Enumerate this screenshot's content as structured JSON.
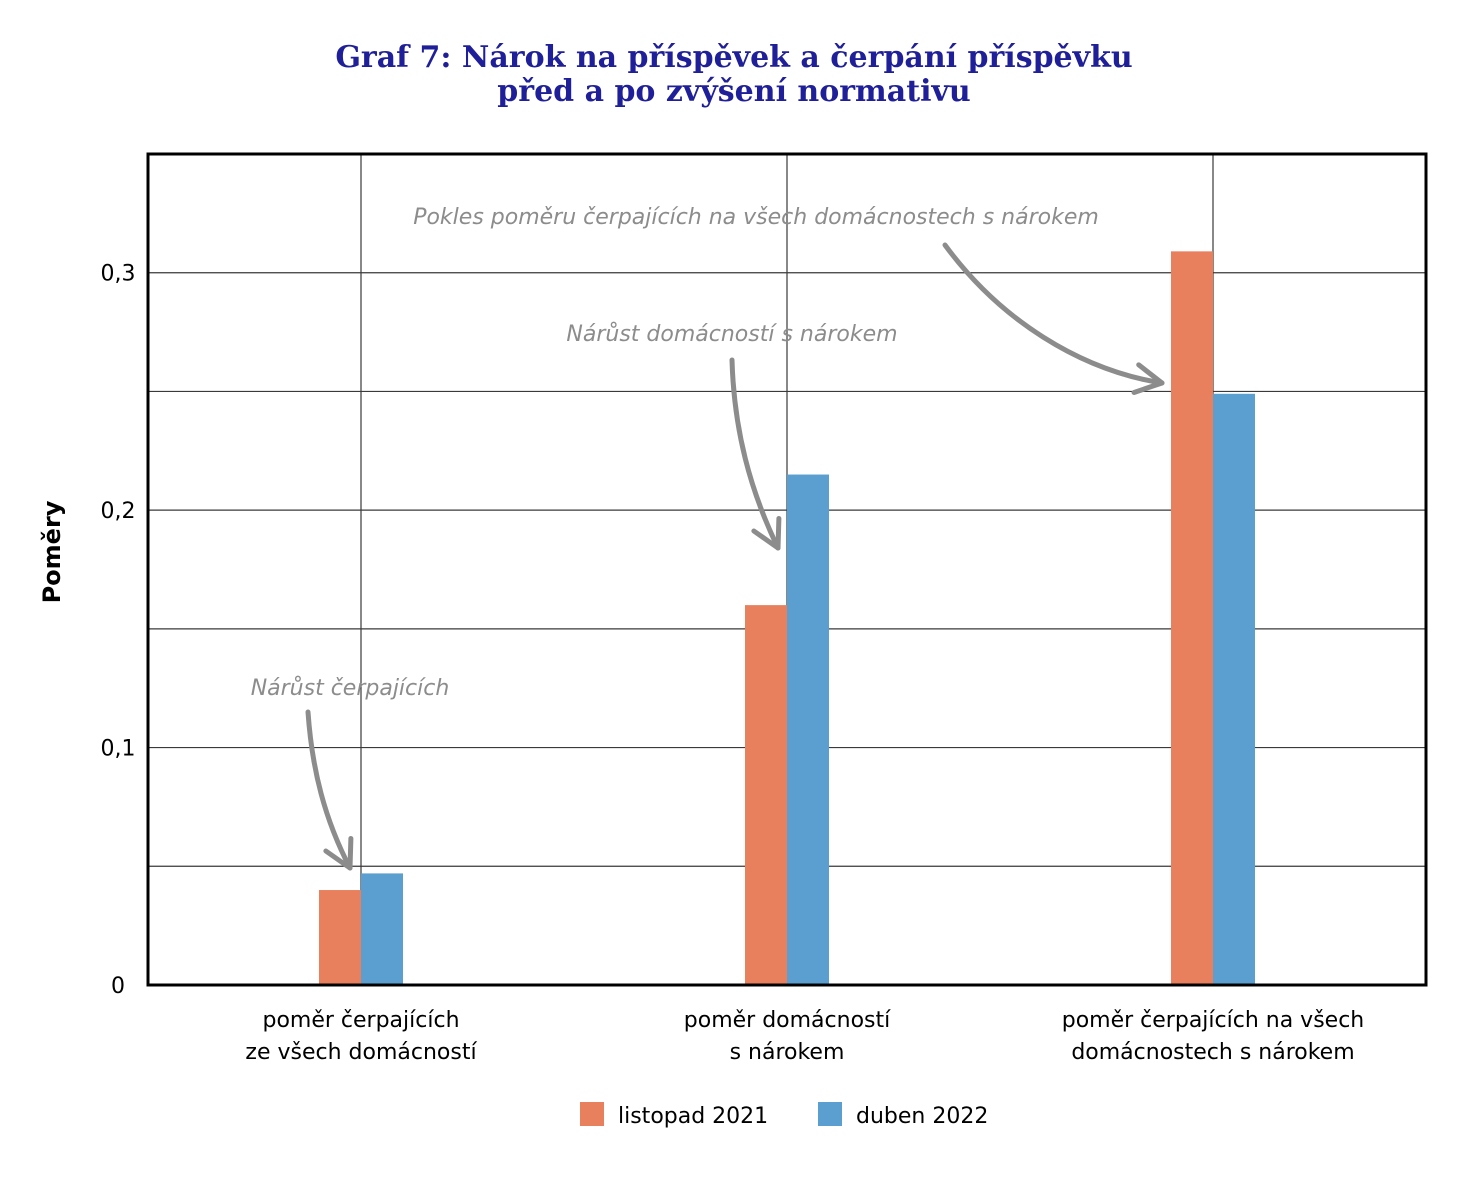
{
  "chart_data": {
    "type": "bar",
    "title_lines": [
      "Graf 7: Nárok na příspěvek a čerpání příspěvku",
      "před a po zvýšení normativu"
    ],
    "title_color": "#1f1f99",
    "ylabel": "Poměry",
    "xlabel": "",
    "ylim": [
      0,
      0.35
    ],
    "y_ticks": [
      {
        "value": 0,
        "label": "0"
      },
      {
        "value": 0.1,
        "label": "0,1"
      },
      {
        "value": 0.2,
        "label": "0,2"
      },
      {
        "value": 0.3,
        "label": "0,3"
      }
    ],
    "y_gridlines": [
      0.05,
      0.1,
      0.15,
      0.2,
      0.25,
      0.3
    ],
    "grid": true,
    "legend_position": "bottom",
    "categories": [
      [
        "poměr čerpajících",
        "ze všech domácností"
      ],
      [
        "poměr domácností",
        "s nárokem"
      ],
      [
        "poměr čerpajících na všech",
        "domácnostech s nárokem"
      ]
    ],
    "series": [
      {
        "name": "listopad 2021",
        "color": "#e8805e",
        "values": [
          0.04,
          0.16,
          0.309
        ]
      },
      {
        "name": "duben 2022",
        "color": "#5b9fd1",
        "values": [
          0.047,
          0.215,
          0.249
        ]
      }
    ],
    "annotations": [
      {
        "text": "Nárůst čerpajících",
        "category_index": 0
      },
      {
        "text": "Nárůst domácností s nárokem",
        "category_index": 1
      },
      {
        "text": "Pokles poměru čerpajících na všech domácnostech s nárokem",
        "category_index": 2
      }
    ],
    "annotation_color": "#8c8c8c"
  }
}
